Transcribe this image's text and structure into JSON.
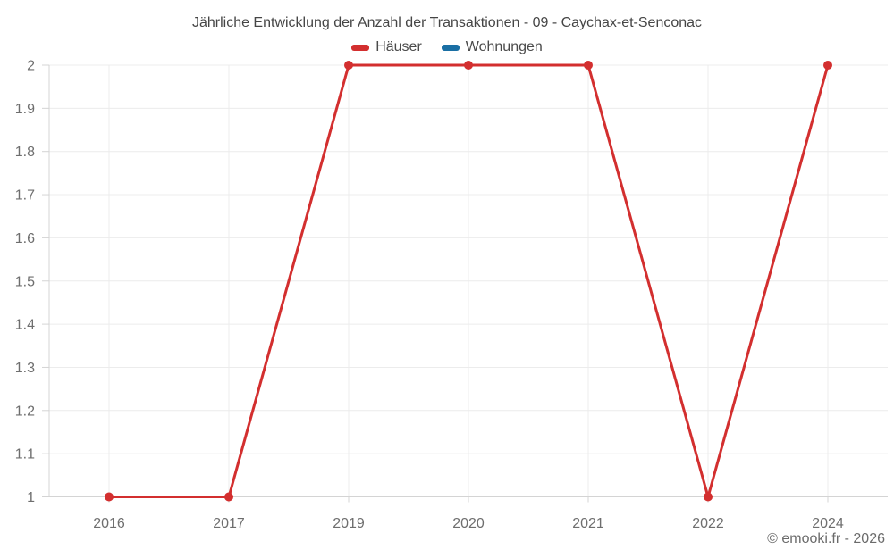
{
  "chart_data": {
    "type": "line",
    "title": "Jährliche Entwicklung der Anzahl der Transaktionen - 09 - Caychax-et-Senconac",
    "categories": [
      "2016",
      "2017",
      "2019",
      "2020",
      "2021",
      "2022",
      "2024"
    ],
    "series": [
      {
        "name": "Häuser",
        "color": "#d32f2f",
        "values": [
          1,
          1,
          2,
          2,
          2,
          1,
          2
        ]
      },
      {
        "name": "Wohnungen",
        "color": "#1a6fa4",
        "values": [
          null,
          null,
          null,
          null,
          null,
          null,
          null
        ]
      }
    ],
    "xlabel": "",
    "ylabel": "",
    "ylim": [
      1,
      2
    ],
    "yticks": {
      "values": [
        1,
        1.1,
        1.2,
        1.3,
        1.4,
        1.5,
        1.6,
        1.7,
        1.8,
        1.9,
        2
      ],
      "labels": [
        "1",
        "1.1",
        "1.2",
        "1.3",
        "1.4",
        "1.5",
        "1.6",
        "1.7",
        "1.8",
        "1.9",
        "2"
      ]
    },
    "grid": true,
    "legend_position": "top",
    "marker": "circle",
    "annotations": {
      "copyright": "© emooki.fr - 2026"
    }
  },
  "theme": {
    "background": "#ffffff",
    "grid_color": "#ececec",
    "axis_color": "#d4d4d4",
    "tick_label_color": "#6e6e6e",
    "title_color": "#454545",
    "legend_text_color": "#4a4a4a",
    "footer_color": "#6b6b6b"
  }
}
